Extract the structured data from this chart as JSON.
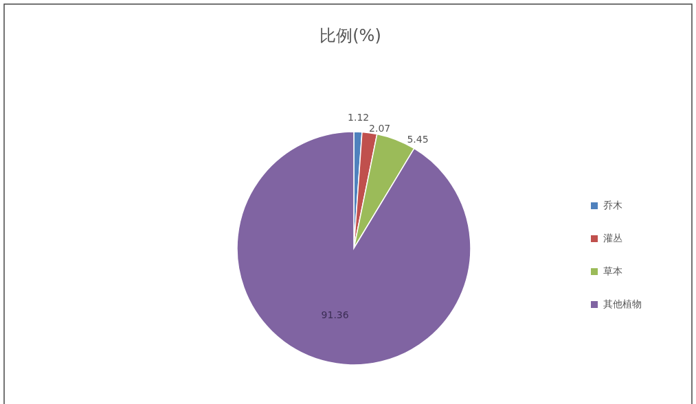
{
  "chart_data": {
    "type": "pie",
    "title": "比例(%)",
    "categories": [
      "乔木",
      "灌丛",
      "草本",
      "其他植物"
    ],
    "values": [
      1.12,
      2.07,
      5.45,
      91.36
    ],
    "colors": [
      "#4f81bd",
      "#c0504d",
      "#9bbb59",
      "#8064a2"
    ],
    "data_labels": true,
    "legend": "right"
  }
}
